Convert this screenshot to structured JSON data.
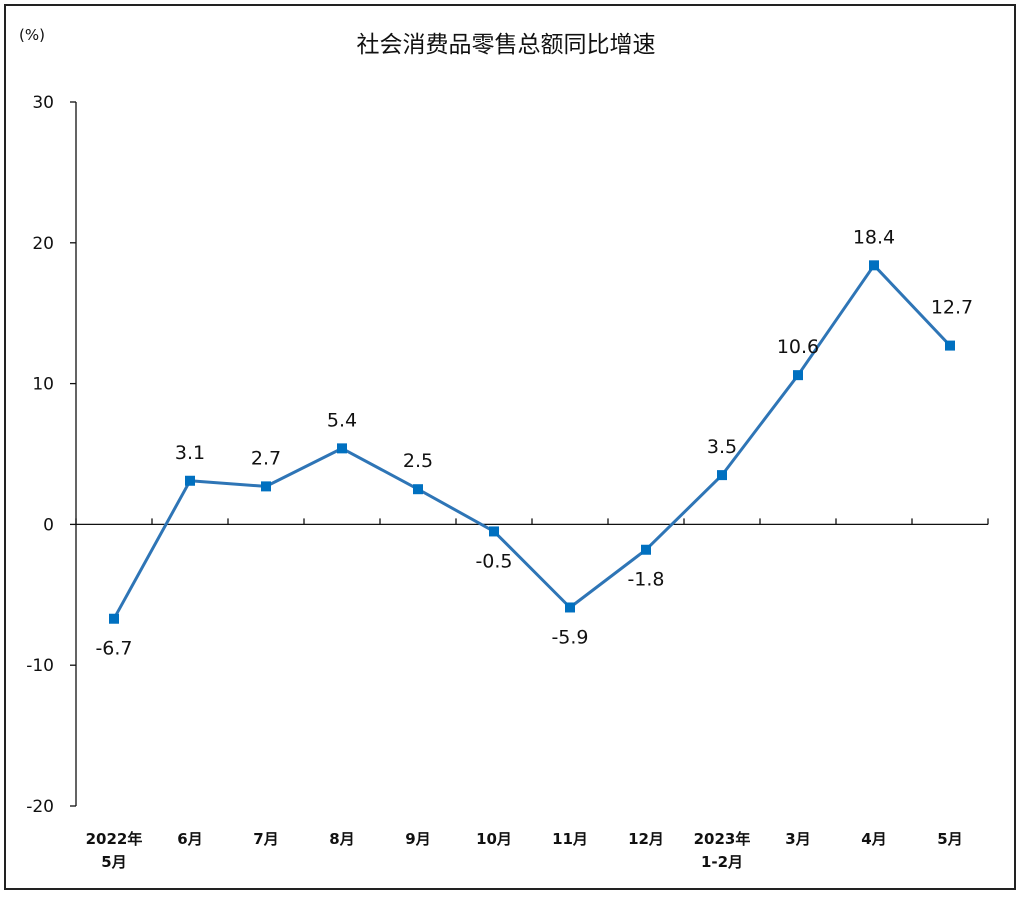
{
  "chart_data": {
    "type": "line",
    "title": "社会消费品零售总额同比增速",
    "unit_label": "(%)",
    "xlabel": "",
    "ylabel": "",
    "ylim": [
      -20,
      30
    ],
    "yticks": [
      "30",
      "20",
      "10",
      "0",
      "-10",
      "-20"
    ],
    "ytick_values": [
      30,
      20,
      10,
      0,
      -10,
      -20
    ],
    "grid": false,
    "legend": "none",
    "categories": [
      [
        "2022年",
        "5月"
      ],
      [
        "6月"
      ],
      [
        "7月"
      ],
      [
        "8月"
      ],
      [
        "9月"
      ],
      [
        "10月"
      ],
      [
        "11月"
      ],
      [
        "12月"
      ],
      [
        "2023年",
        "1-2月"
      ],
      [
        "3月"
      ],
      [
        "4月"
      ],
      [
        "5月"
      ]
    ],
    "series": [
      {
        "values": [
          -6.7,
          3.1,
          2.7,
          5.4,
          2.5,
          -0.5,
          -5.9,
          -1.8,
          3.5,
          10.6,
          18.4,
          12.7
        ],
        "labels": [
          "-6.7",
          "3.1",
          "2.7",
          "5.4",
          "2.5",
          "-0.5",
          "-5.9",
          "-1.8",
          "3.5",
          "10.6",
          "18.4",
          "12.7"
        ],
        "color": "#2e75b6",
        "marker_color": "#0070c0"
      }
    ]
  }
}
